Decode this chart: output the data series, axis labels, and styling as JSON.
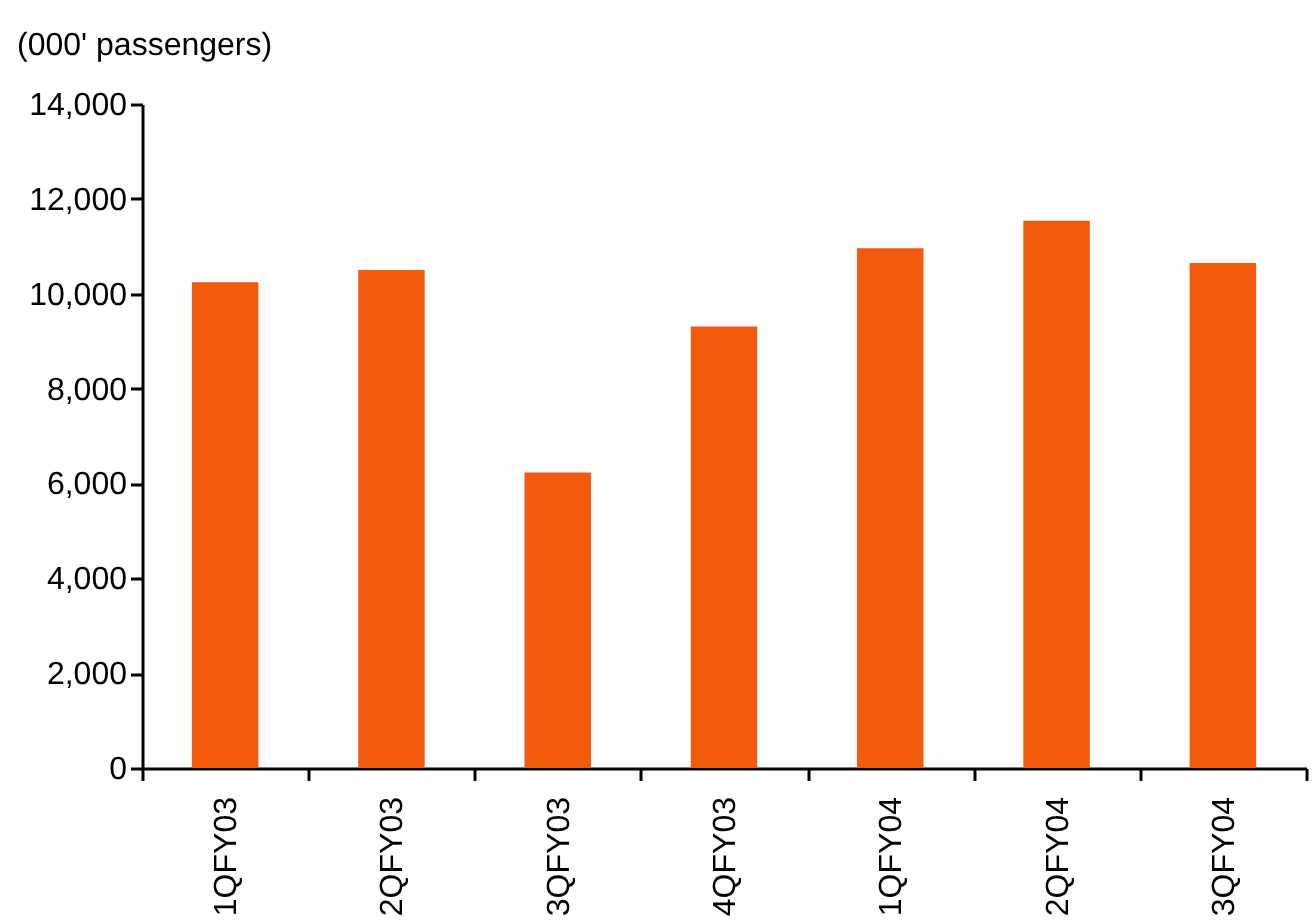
{
  "chart_data": {
    "type": "bar",
    "ylabel": "(000' passengers)",
    "categories": [
      "1QFY03",
      "2QFY03",
      "3QFY03",
      "4QFY03",
      "1QFY04",
      "2QFY04",
      "3QFY04"
    ],
    "values": [
      10240,
      10500,
      6230,
      9310,
      10960,
      11540,
      10650
    ],
    "color": "#f25a0e",
    "ylim": [
      0,
      14000
    ],
    "yticks": [
      0,
      {
        "value": 2000,
        "label": "2,000"
      },
      {
        "value": 4000,
        "label": "4,000"
      },
      {
        "value": 6000,
        "label": "6,000"
      },
      {
        "value": 8000,
        "label": "8,000"
      },
      {
        "value": 10000,
        "label": "10,000"
      },
      {
        "value": 12000,
        "label": "12,000"
      },
      {
        "value": 14000,
        "label": "14,000"
      }
    ],
    "grid": false
  }
}
